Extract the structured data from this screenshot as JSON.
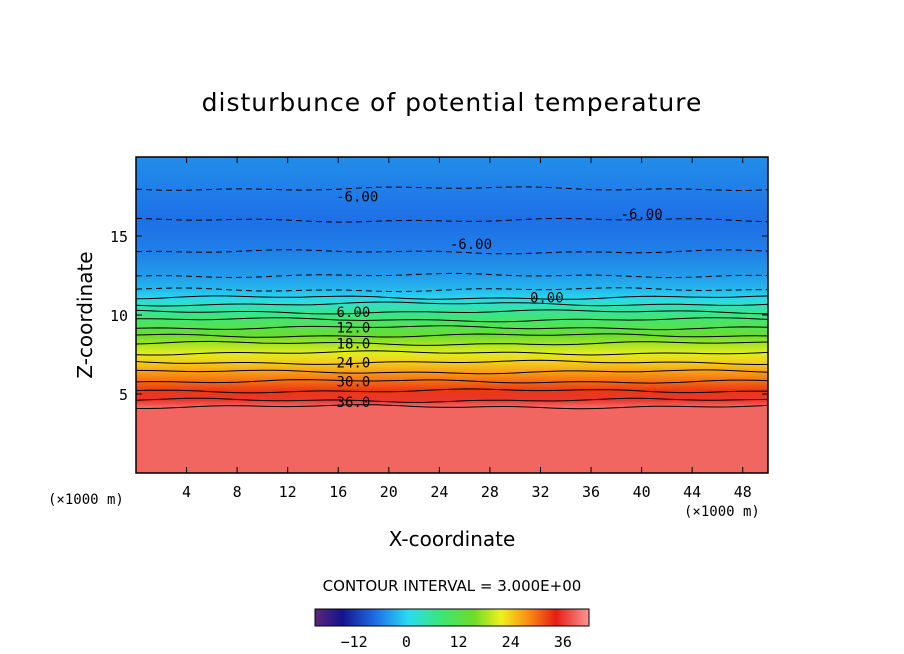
{
  "chart_data": {
    "type": "heatmap",
    "title": "disturbunce of potential temperature",
    "xlabel": "X-coordinate",
    "ylabel": "Z-coordinate",
    "x_unit": "(×1000 m)",
    "z_unit": "(×1000 m)",
    "xlim": [
      0,
      50
    ],
    "ylim": [
      0,
      20
    ],
    "x_ticks": [
      4,
      8,
      12,
      16,
      20,
      24,
      28,
      32,
      36,
      40,
      44,
      48
    ],
    "y_ticks": [
      5,
      10,
      15
    ],
    "contour_interval_text": "CONTOUR INTERVAL = 3.000E+00",
    "colorbar": {
      "min": -21,
      "max": 42,
      "ticks": [
        -12,
        0,
        12,
        24,
        36
      ]
    },
    "contour_labels": [
      {
        "text": "-6.00",
        "x": 17.5,
        "z": 17.5,
        "dashed": true
      },
      {
        "text": "-6.00",
        "x": 26.5,
        "z": 14.5,
        "dashed": true
      },
      {
        "text": "-6.00",
        "x": 40.0,
        "z": 16.4,
        "dashed": true
      },
      {
        "text": "0.00",
        "x": 32.5,
        "z": 11.1,
        "dashed": false
      },
      {
        "text": "6.00",
        "x": 17.2,
        "z": 10.2,
        "dashed": false
      },
      {
        "text": "12.0",
        "x": 17.2,
        "z": 9.2,
        "dashed": false
      },
      {
        "text": "18.0",
        "x": 17.2,
        "z": 8.2,
        "dashed": false
      },
      {
        "text": "24.0",
        "x": 17.2,
        "z": 7.0,
        "dashed": false
      },
      {
        "text": "30.0",
        "x": 17.2,
        "z": 5.8,
        "dashed": false
      },
      {
        "text": "36.0",
        "x": 17.2,
        "z": 4.5,
        "dashed": false
      }
    ],
    "vertical_profile": [
      {
        "z": 0,
        "value": 39
      },
      {
        "z": 4.2,
        "value": 39
      },
      {
        "z": 4.6,
        "value": 36
      },
      {
        "z": 5.2,
        "value": 33
      },
      {
        "z": 5.8,
        "value": 30
      },
      {
        "z": 6.4,
        "value": 27
      },
      {
        "z": 7.0,
        "value": 24
      },
      {
        "z": 7.6,
        "value": 21
      },
      {
        "z": 8.2,
        "value": 18
      },
      {
        "z": 8.7,
        "value": 15
      },
      {
        "z": 9.2,
        "value": 12
      },
      {
        "z": 9.7,
        "value": 9
      },
      {
        "z": 10.2,
        "value": 6
      },
      {
        "z": 10.7,
        "value": 3
      },
      {
        "z": 11.1,
        "value": 0
      },
      {
        "z": 11.6,
        "value": -2
      },
      {
        "z": 12.5,
        "value": -4
      },
      {
        "z": 14.0,
        "value": -6
      },
      {
        "z": 16.0,
        "value": -7
      },
      {
        "z": 18.0,
        "value": -6
      },
      {
        "z": 20.0,
        "value": -5
      }
    ],
    "colors": {
      "background": "#ffffff",
      "axis": "#000000"
    }
  }
}
